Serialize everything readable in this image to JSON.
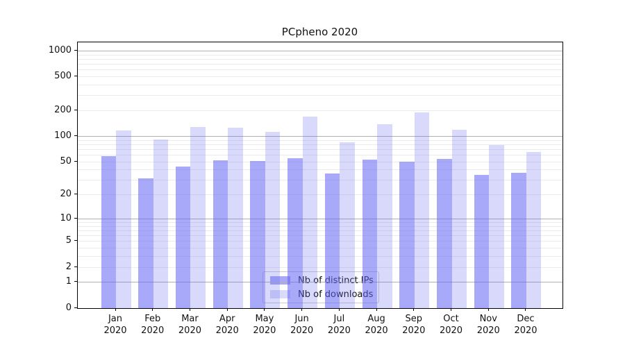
{
  "chart_data": {
    "type": "bar",
    "title": "PCpheno 2020",
    "categories": [
      "Jan",
      "Feb",
      "Mar",
      "Apr",
      "May",
      "Jun",
      "Jul",
      "Aug",
      "Sep",
      "Oct",
      "Nov",
      "Dec"
    ],
    "category_year": "2020",
    "series": [
      {
        "name": "Nb of distinct IPs",
        "values": [
          58,
          32,
          44,
          52,
          51,
          55,
          36,
          53,
          50,
          54,
          35,
          37
        ],
        "fill": "rgba(98,98,244,0.55)",
        "legend_color": "#a9a9f8"
      },
      {
        "name": "Nb of downloads",
        "values": [
          118,
          92,
          130,
          127,
          114,
          170,
          85,
          140,
          190,
          120,
          79,
          65
        ],
        "fill": "rgba(98,98,244,0.24)",
        "legend_color": "#dadaf9"
      }
    ],
    "yscale": "log1p",
    "yticks": [
      0,
      1,
      2,
      5,
      10,
      20,
      50,
      100,
      200,
      500,
      1000
    ],
    "ylim": [
      0,
      1264
    ],
    "grid": {
      "major_color": "#b0b0b0",
      "minor_color": "#ebebeb"
    },
    "legend_position": "lower center"
  }
}
